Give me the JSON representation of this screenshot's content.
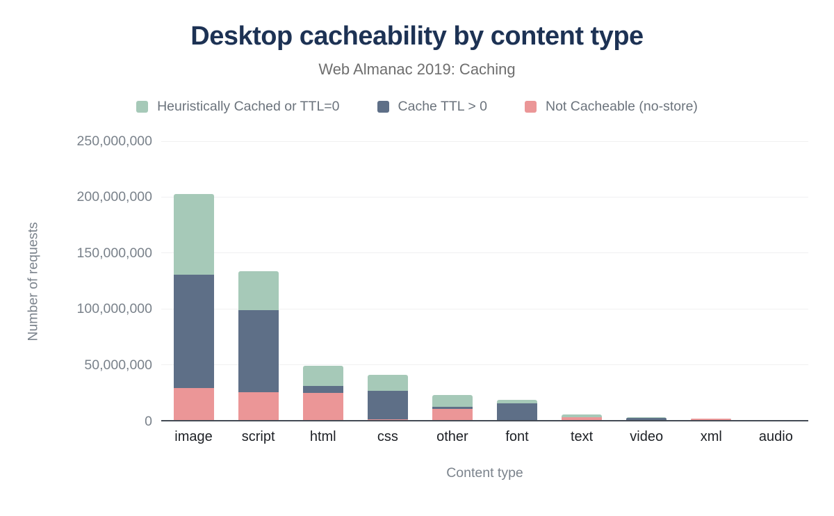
{
  "chart_data": {
    "type": "bar",
    "variant": "stacked",
    "title": "Desktop cacheability by content type",
    "subtitle": "Web Almanac 2019: Caching",
    "xlabel": "Content type",
    "ylabel": "Number of requests",
    "ylim": [
      0,
      250000000
    ],
    "ytick_step": 50000000,
    "grid": true,
    "legend_position": "top",
    "background_color": "#ffffff",
    "title_color": "#1d3254",
    "categories": [
      "image",
      "script",
      "html",
      "css",
      "other",
      "font",
      "text",
      "video",
      "xml",
      "audio"
    ],
    "stack_order_bottom_to_top": [
      "Not Cacheable (no-store)",
      "Cache TTL > 0",
      "Heuristically Cached or TTL=0"
    ],
    "series": [
      {
        "name": "Heuristically Cached or TTL=0",
        "color": "#a6c9b8",
        "values": [
          72000000,
          35000000,
          18000000,
          14500000,
          10500000,
          3000000,
          2200000,
          500000,
          150000,
          100000
        ]
      },
      {
        "name": "Cache TTL > 0",
        "color": "#5e6f87",
        "values": [
          101000000,
          73000000,
          6500000,
          25500000,
          2000000,
          14500000,
          300000,
          1600000,
          200000,
          100000
        ]
      },
      {
        "name": "Not Cacheable (no-store)",
        "color": "#eb9697",
        "values": [
          28500000,
          25000000,
          24000000,
          500000,
          10000000,
          300000,
          2300000,
          200000,
          1100000,
          100000
        ]
      }
    ]
  }
}
